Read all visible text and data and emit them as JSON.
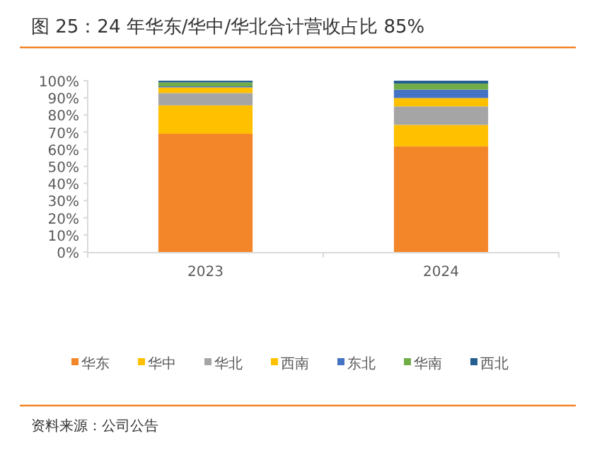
{
  "chart_data": {
    "type": "bar",
    "title": "图 25：24 年华东/华中/华北合计营收占比 85%",
    "categories": [
      "2023",
      "2024"
    ],
    "stacked": true,
    "legend": "bottom",
    "grid": false,
    "ylim": [
      0,
      100
    ],
    "yticks": [
      {
        "value": 0,
        "label": "0%"
      },
      {
        "value": 10,
        "label": "10%"
      },
      {
        "value": 20,
        "label": "20%"
      },
      {
        "value": 30,
        "label": "30%"
      },
      {
        "value": 40,
        "label": "40%"
      },
      {
        "value": 50,
        "label": "50%"
      },
      {
        "value": 60,
        "label": "60%"
      },
      {
        "value": 70,
        "label": "70%"
      },
      {
        "value": 80,
        "label": "80%"
      },
      {
        "value": 90,
        "label": "90%"
      },
      {
        "value": 100,
        "label": "100%"
      }
    ],
    "series": [
      {
        "name": "华东",
        "color": "#f4862a",
        "values": [
          69,
          61.6
        ]
      },
      {
        "name": "华中",
        "color": "#ffc000",
        "values": [
          16.6,
          12.6
        ]
      },
      {
        "name": "华北",
        "color": "#a5a5a5",
        "values": [
          7.2,
          10.8
        ]
      },
      {
        "name": "西南",
        "color": "#ffc000",
        "values": [
          3.3,
          4.9
        ]
      },
      {
        "name": "东北",
        "color": "#4472c4",
        "values": [
          0.6,
          4.9
        ]
      },
      {
        "name": "华南",
        "color": "#70ad47",
        "values": [
          2.3,
          3.5
        ]
      },
      {
        "name": "西北",
        "color": "#255e91",
        "values": [
          1.0,
          1.7
        ]
      }
    ],
    "annotations": [
      "资料来源：公司公告"
    ]
  }
}
